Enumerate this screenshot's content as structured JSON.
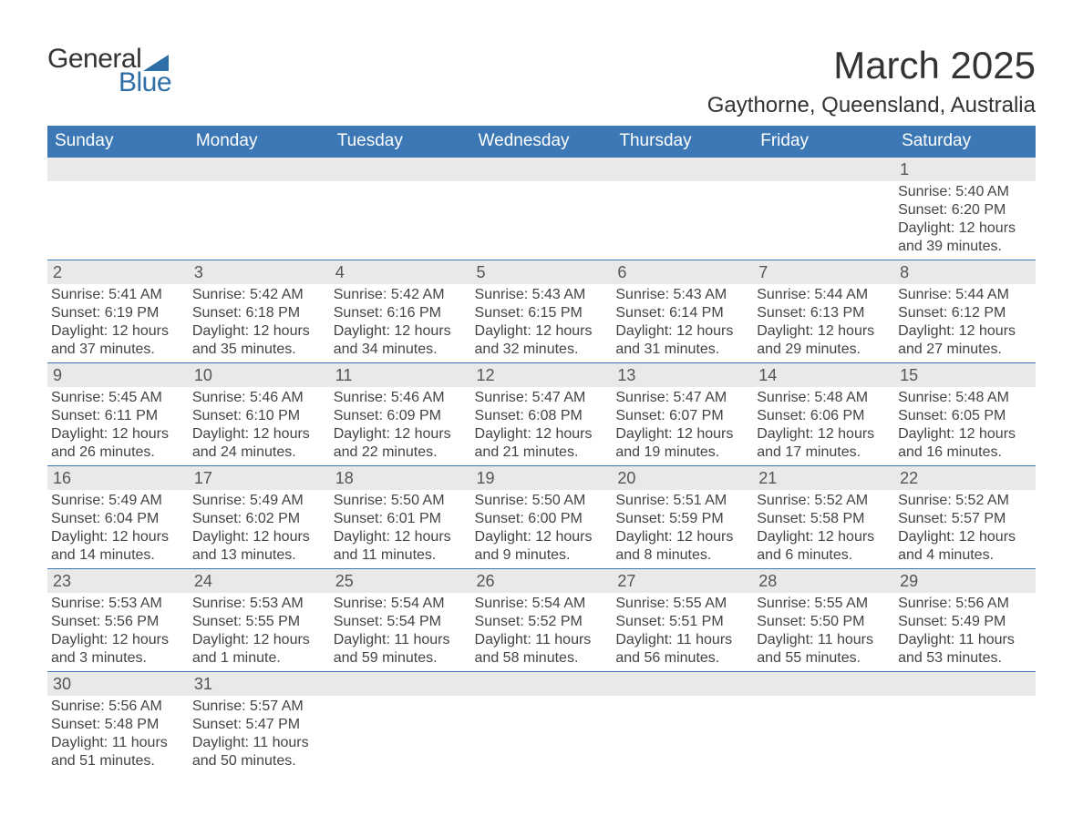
{
  "logo": {
    "top": "General",
    "bottom": "Blue"
  },
  "title": "March 2025",
  "location": "Gaythorne, Queensland, Australia",
  "colors": {
    "header_bg": "#3b78b5",
    "header_text": "#ffffff",
    "daynum_bg": "#e9e9e9",
    "daynum_text": "#555555",
    "cell_text": "#444444",
    "accent": "#2f6fa7"
  },
  "day_headers": [
    "Sunday",
    "Monday",
    "Tuesday",
    "Wednesday",
    "Thursday",
    "Friday",
    "Saturday"
  ],
  "weeks": [
    [
      {
        "day": "",
        "sunrise": "",
        "sunset": "",
        "daylight": ""
      },
      {
        "day": "",
        "sunrise": "",
        "sunset": "",
        "daylight": ""
      },
      {
        "day": "",
        "sunrise": "",
        "sunset": "",
        "daylight": ""
      },
      {
        "day": "",
        "sunrise": "",
        "sunset": "",
        "daylight": ""
      },
      {
        "day": "",
        "sunrise": "",
        "sunset": "",
        "daylight": ""
      },
      {
        "day": "",
        "sunrise": "",
        "sunset": "",
        "daylight": ""
      },
      {
        "day": "1",
        "sunrise": "Sunrise: 5:40 AM",
        "sunset": "Sunset: 6:20 PM",
        "daylight": "Daylight: 12 hours and 39 minutes."
      }
    ],
    [
      {
        "day": "2",
        "sunrise": "Sunrise: 5:41 AM",
        "sunset": "Sunset: 6:19 PM",
        "daylight": "Daylight: 12 hours and 37 minutes."
      },
      {
        "day": "3",
        "sunrise": "Sunrise: 5:42 AM",
        "sunset": "Sunset: 6:18 PM",
        "daylight": "Daylight: 12 hours and 35 minutes."
      },
      {
        "day": "4",
        "sunrise": "Sunrise: 5:42 AM",
        "sunset": "Sunset: 6:16 PM",
        "daylight": "Daylight: 12 hours and 34 minutes."
      },
      {
        "day": "5",
        "sunrise": "Sunrise: 5:43 AM",
        "sunset": "Sunset: 6:15 PM",
        "daylight": "Daylight: 12 hours and 32 minutes."
      },
      {
        "day": "6",
        "sunrise": "Sunrise: 5:43 AM",
        "sunset": "Sunset: 6:14 PM",
        "daylight": "Daylight: 12 hours and 31 minutes."
      },
      {
        "day": "7",
        "sunrise": "Sunrise: 5:44 AM",
        "sunset": "Sunset: 6:13 PM",
        "daylight": "Daylight: 12 hours and 29 minutes."
      },
      {
        "day": "8",
        "sunrise": "Sunrise: 5:44 AM",
        "sunset": "Sunset: 6:12 PM",
        "daylight": "Daylight: 12 hours and 27 minutes."
      }
    ],
    [
      {
        "day": "9",
        "sunrise": "Sunrise: 5:45 AM",
        "sunset": "Sunset: 6:11 PM",
        "daylight": "Daylight: 12 hours and 26 minutes."
      },
      {
        "day": "10",
        "sunrise": "Sunrise: 5:46 AM",
        "sunset": "Sunset: 6:10 PM",
        "daylight": "Daylight: 12 hours and 24 minutes."
      },
      {
        "day": "11",
        "sunrise": "Sunrise: 5:46 AM",
        "sunset": "Sunset: 6:09 PM",
        "daylight": "Daylight: 12 hours and 22 minutes."
      },
      {
        "day": "12",
        "sunrise": "Sunrise: 5:47 AM",
        "sunset": "Sunset: 6:08 PM",
        "daylight": "Daylight: 12 hours and 21 minutes."
      },
      {
        "day": "13",
        "sunrise": "Sunrise: 5:47 AM",
        "sunset": "Sunset: 6:07 PM",
        "daylight": "Daylight: 12 hours and 19 minutes."
      },
      {
        "day": "14",
        "sunrise": "Sunrise: 5:48 AM",
        "sunset": "Sunset: 6:06 PM",
        "daylight": "Daylight: 12 hours and 17 minutes."
      },
      {
        "day": "15",
        "sunrise": "Sunrise: 5:48 AM",
        "sunset": "Sunset: 6:05 PM",
        "daylight": "Daylight: 12 hours and 16 minutes."
      }
    ],
    [
      {
        "day": "16",
        "sunrise": "Sunrise: 5:49 AM",
        "sunset": "Sunset: 6:04 PM",
        "daylight": "Daylight: 12 hours and 14 minutes."
      },
      {
        "day": "17",
        "sunrise": "Sunrise: 5:49 AM",
        "sunset": "Sunset: 6:02 PM",
        "daylight": "Daylight: 12 hours and 13 minutes."
      },
      {
        "day": "18",
        "sunrise": "Sunrise: 5:50 AM",
        "sunset": "Sunset: 6:01 PM",
        "daylight": "Daylight: 12 hours and 11 minutes."
      },
      {
        "day": "19",
        "sunrise": "Sunrise: 5:50 AM",
        "sunset": "Sunset: 6:00 PM",
        "daylight": "Daylight: 12 hours and 9 minutes."
      },
      {
        "day": "20",
        "sunrise": "Sunrise: 5:51 AM",
        "sunset": "Sunset: 5:59 PM",
        "daylight": "Daylight: 12 hours and 8 minutes."
      },
      {
        "day": "21",
        "sunrise": "Sunrise: 5:52 AM",
        "sunset": "Sunset: 5:58 PM",
        "daylight": "Daylight: 12 hours and 6 minutes."
      },
      {
        "day": "22",
        "sunrise": "Sunrise: 5:52 AM",
        "sunset": "Sunset: 5:57 PM",
        "daylight": "Daylight: 12 hours and 4 minutes."
      }
    ],
    [
      {
        "day": "23",
        "sunrise": "Sunrise: 5:53 AM",
        "sunset": "Sunset: 5:56 PM",
        "daylight": "Daylight: 12 hours and 3 minutes."
      },
      {
        "day": "24",
        "sunrise": "Sunrise: 5:53 AM",
        "sunset": "Sunset: 5:55 PM",
        "daylight": "Daylight: 12 hours and 1 minute."
      },
      {
        "day": "25",
        "sunrise": "Sunrise: 5:54 AM",
        "sunset": "Sunset: 5:54 PM",
        "daylight": "Daylight: 11 hours and 59 minutes."
      },
      {
        "day": "26",
        "sunrise": "Sunrise: 5:54 AM",
        "sunset": "Sunset: 5:52 PM",
        "daylight": "Daylight: 11 hours and 58 minutes."
      },
      {
        "day": "27",
        "sunrise": "Sunrise: 5:55 AM",
        "sunset": "Sunset: 5:51 PM",
        "daylight": "Daylight: 11 hours and 56 minutes."
      },
      {
        "day": "28",
        "sunrise": "Sunrise: 5:55 AM",
        "sunset": "Sunset: 5:50 PM",
        "daylight": "Daylight: 11 hours and 55 minutes."
      },
      {
        "day": "29",
        "sunrise": "Sunrise: 5:56 AM",
        "sunset": "Sunset: 5:49 PM",
        "daylight": "Daylight: 11 hours and 53 minutes."
      }
    ],
    [
      {
        "day": "30",
        "sunrise": "Sunrise: 5:56 AM",
        "sunset": "Sunset: 5:48 PM",
        "daylight": "Daylight: 11 hours and 51 minutes."
      },
      {
        "day": "31",
        "sunrise": "Sunrise: 5:57 AM",
        "sunset": "Sunset: 5:47 PM",
        "daylight": "Daylight: 11 hours and 50 minutes."
      },
      {
        "day": "",
        "sunrise": "",
        "sunset": "",
        "daylight": ""
      },
      {
        "day": "",
        "sunrise": "",
        "sunset": "",
        "daylight": ""
      },
      {
        "day": "",
        "sunrise": "",
        "sunset": "",
        "daylight": ""
      },
      {
        "day": "",
        "sunrise": "",
        "sunset": "",
        "daylight": ""
      },
      {
        "day": "",
        "sunrise": "",
        "sunset": "",
        "daylight": ""
      }
    ]
  ]
}
